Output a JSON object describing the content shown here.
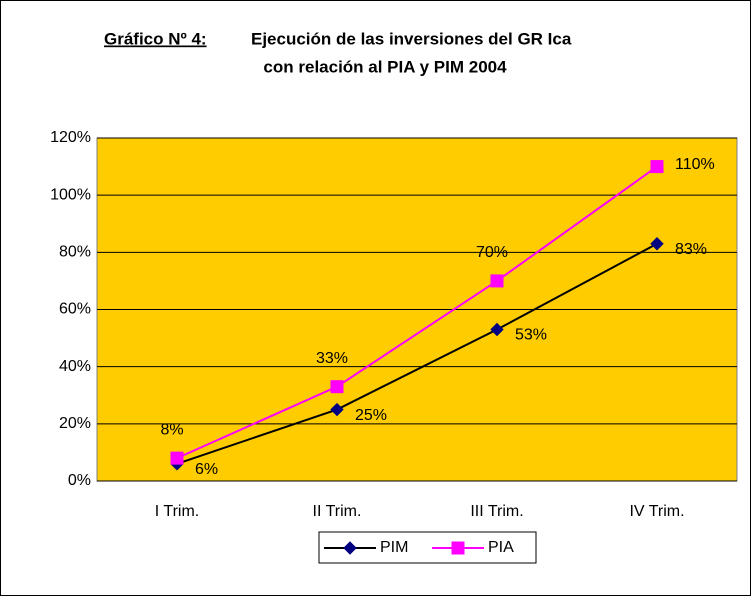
{
  "chart_data": {
    "type": "line",
    "title_label": "Gráfico Nº 4:",
    "title": [
      "Ejecución de las inversiones del GR Ica",
      "con relación al PIA y PIM 2004"
    ],
    "categories": [
      "I Trim.",
      "II Trim.",
      "III Trim.",
      "IV Trim."
    ],
    "series": [
      {
        "name": "PIM",
        "color": "#000080",
        "marker": "diamond",
        "values": [
          6,
          25,
          53,
          83
        ],
        "value_labels": [
          "6%",
          "25%",
          "53%",
          "83%"
        ]
      },
      {
        "name": "PIA",
        "color": "#ff00ff",
        "marker": "square",
        "values": [
          8,
          33,
          70,
          110
        ],
        "value_labels": [
          "8%",
          "33%",
          "70%",
          "110%"
        ]
      }
    ],
    "ylim": [
      0,
      120
    ],
    "yticks": [
      {
        "value": 0,
        "label": "0%"
      },
      {
        "value": 20,
        "label": "20%"
      },
      {
        "value": 40,
        "label": "40%"
      },
      {
        "value": 60,
        "label": "60%"
      },
      {
        "value": 80,
        "label": "80%"
      },
      {
        "value": 100,
        "label": "100%"
      },
      {
        "value": 120,
        "label": "120%"
      }
    ],
    "grid": true,
    "plot_background": "#ffcc00",
    "legend": "bottom"
  }
}
